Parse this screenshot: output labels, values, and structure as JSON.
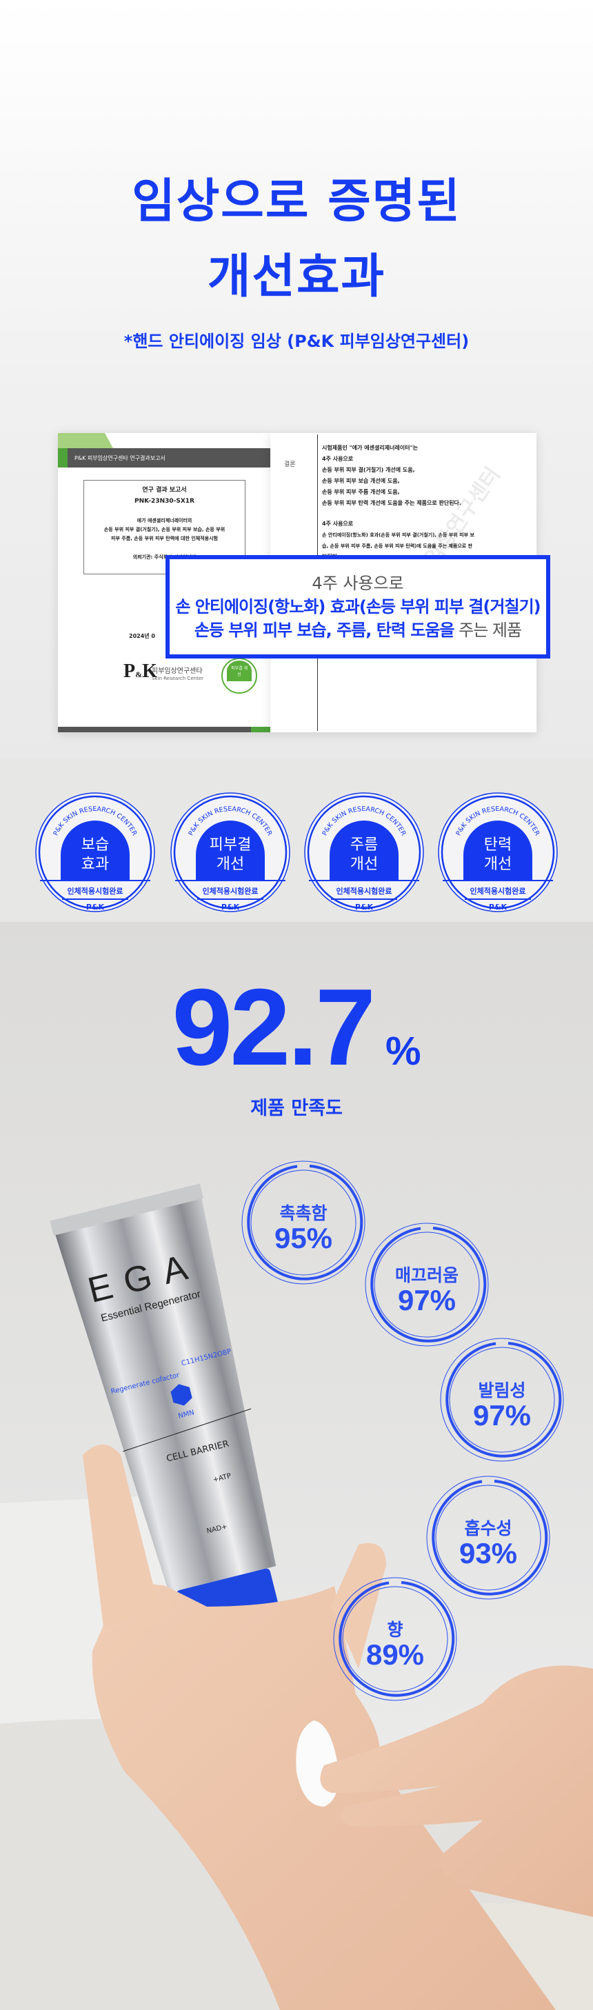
{
  "header": {
    "title_line1": "임상으로 증명된",
    "title_line2": "개선효과",
    "subtitle": "*핸드 안티에이징 임상 (P&K 피부임상연구센터)"
  },
  "report": {
    "header_bar": "P&K 피부임상연구센타 연구결과보고서",
    "box_title": "연구 결과 보고서",
    "code": "PNK-23N30-SX1R",
    "desc": [
      "에가 에센셜리제너레이터의",
      "손등 부위 피부 결(거칠기), 손등 부위 피부 보습, 손등 부위",
      "피부 주름, 손등 부위 피부 탄력에 대한 인체적용시험"
    ],
    "client": "의뢰기관: 주식회사 디파이넘버",
    "date": "2024년 0",
    "logo_name": "피부임상연구센타",
    "logo_sub": "Skin Research Center",
    "stamp": "피부결 개선",
    "conclusion_label": "결론",
    "conclusion": [
      "시험제품인 \"에가 에센셜리제너레이터\"는",
      "4주 사용으로",
      "손등 부위 피부 결(거칠기) 개선에 도움,",
      "손등 부위 피부 보습 개선에 도움,",
      "손등 부위 피부 주름 개선에 도움,",
      "손등 부위 피부 탄력 개선에 도움을 주는 제품으로 판단된다.",
      "",
      "4주 사용으로",
      "손 안티에이징(항노화) 효과(손등 부위 피부 결(거칠기), 손등 부위 피부 보",
      "습, 손등 부위 피부 주름, 손등 부위 피부 탄력)에 도움을 주는 제품으로 판",
      "단된다."
    ],
    "watermark": "피부임상연구센터"
  },
  "highlight": {
    "line1": "4주 사용으로",
    "line2": "손 안티에이징(항노화) 효과(손등 부위 피부 결(거칠기)",
    "line3_blue": "손등 부위 피부 보습, 주름, 탄력 도움을",
    "line3_gray": " 주는 제품"
  },
  "badges": [
    {
      "arc": "P&K SKIN RESEARCH CENTER",
      "l1": "보습",
      "l2": "효과",
      "bottom": "인체적용시험완료",
      "mark": "P&K"
    },
    {
      "arc": "P&K SKIN RESEARCH CENTER",
      "l1": "피부결",
      "l2": "개선",
      "bottom": "인체적용시험완료",
      "mark": "P&K"
    },
    {
      "arc": "P&K SKIN RESEARCH CENTER",
      "l1": "주름",
      "l2": "개선",
      "bottom": "인체적용시험완료",
      "mark": "P&K"
    },
    {
      "arc": "P&K SKIN RESEARCH CENTER",
      "l1": "탄력",
      "l2": "개선",
      "bottom": "인체적용시험완료",
      "mark": "P&K"
    }
  ],
  "satisfaction": {
    "value": "92.7",
    "unit": "%",
    "label": "제품 만족도",
    "percent": 92.7
  },
  "stats": [
    {
      "label": "촉촉함",
      "value": "95%"
    },
    {
      "label": "매끄러움",
      "value": "97%"
    },
    {
      "label": "발림성",
      "value": "97%"
    },
    {
      "label": "흡수성",
      "value": "93%"
    },
    {
      "label": "향",
      "value": "89%"
    }
  ],
  "product": {
    "brand": "EGA",
    "name": "Essential Regenerator",
    "tag1": "Regenerate cofactor",
    "tag2": "NMN",
    "formula": "C11H15N2O8P",
    "barrier": "CELL BARRIER",
    "atp": "+ATP",
    "nad": "NAD+"
  },
  "colors": {
    "accent": "#1639ef",
    "report_green": "#5aae3a"
  }
}
